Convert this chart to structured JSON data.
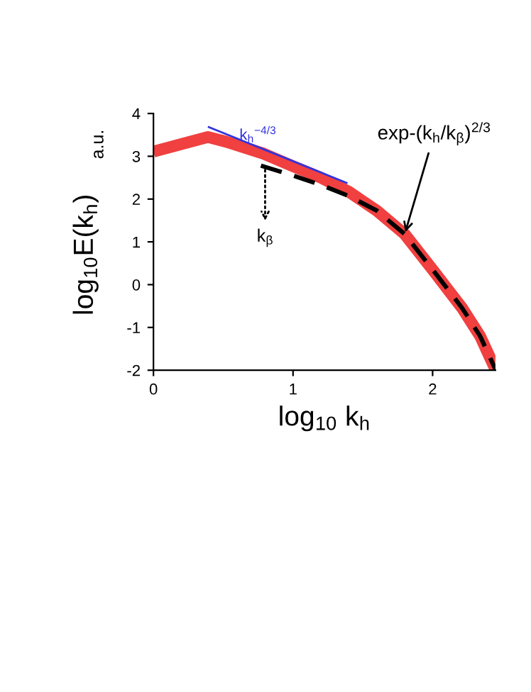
{
  "chart_data": {
    "type": "line",
    "xlabel": "log$_{10}$ k$_{h}$",
    "ylabel": "log$_{10}$E(k$_{h}$)",
    "y2label": "a.u.",
    "xlim": [
      0,
      2.45
    ],
    "ylim": [
      -2,
      4
    ],
    "xticks": [
      0,
      1,
      2
    ],
    "yticks": [
      -2,
      -1,
      0,
      1,
      2,
      3,
      4
    ],
    "grid": false,
    "legend": false,
    "series": [
      {
        "color": "#f04040",
        "x": [
          0,
          0.39,
          0.52,
          0.79,
          0.99,
          1.2,
          1.4,
          1.6,
          1.8,
          2.0,
          2.21,
          2.34,
          2.45
        ],
        "values": [
          3.11,
          3.45,
          3.34,
          3.06,
          2.78,
          2.5,
          2.17,
          1.73,
          1.18,
          0.35,
          -0.54,
          -1.2,
          -1.98
        ]
      },
      {
        "color": "#000000",
        "line_style": "dashed",
        "x": [
          0.77,
          0.99,
          1.2,
          1.4,
          1.6,
          1.8,
          2.0,
          2.21,
          2.34,
          2.45
        ],
        "values": [
          2.78,
          2.56,
          2.33,
          2.07,
          1.73,
          1.18,
          0.35,
          -0.54,
          -1.2,
          -1.98
        ]
      },
      {
        "name": "k$_{h}$$^{−4/3}$",
        "color": "#3333dd",
        "x": [
          0.39,
          1.39
        ],
        "values": [
          3.69,
          2.37
        ]
      }
    ],
    "annotations": [
      {
        "text": "k$_{β}$",
        "x": 0.8,
        "y": 2.78
      },
      {
        "text": "exp-(k$_{h}$/k$_{β}$)$^{2/3}$",
        "x": 1.8,
        "y": 1.18
      }
    ]
  }
}
